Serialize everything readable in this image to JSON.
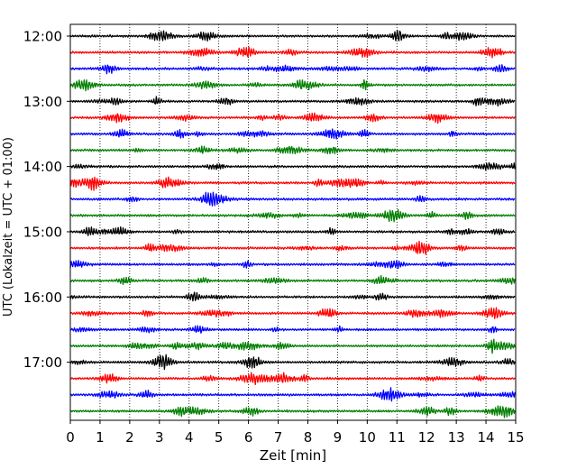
{
  "chart_data": {
    "type": "line",
    "title": "",
    "xlabel": "Zeit  [min]",
    "ylabel": "UTC (Lokalzeit = UTC + 01:00)",
    "xlim": [
      0,
      15
    ],
    "x_ticks": [
      0,
      1,
      2,
      3,
      4,
      5,
      6,
      7,
      8,
      9,
      10,
      11,
      12,
      13,
      14,
      15
    ],
    "x_tick_labels": [
      "0",
      "1",
      "2",
      "3",
      "4",
      "5",
      "6",
      "7",
      "8",
      "9",
      "10",
      "11",
      "12",
      "13",
      "14",
      "15"
    ],
    "grid": "vertical dotted",
    "legend": "none",
    "y_tick_labels": [
      "12:00",
      "13:00",
      "14:00",
      "15:00",
      "16:00",
      "17:00"
    ],
    "trace_colors": [
      "#000000",
      "#ff0000",
      "#0000ff",
      "#007f00"
    ],
    "traces": [
      {
        "start": "12:00",
        "color": "#000000"
      },
      {
        "start": "12:15",
        "color": "#ff0000"
      },
      {
        "start": "12:30",
        "color": "#0000ff"
      },
      {
        "start": "12:45",
        "color": "#007f00"
      },
      {
        "start": "13:00",
        "color": "#000000"
      },
      {
        "start": "13:15",
        "color": "#ff0000"
      },
      {
        "start": "13:30",
        "color": "#0000ff"
      },
      {
        "start": "13:45",
        "color": "#007f00"
      },
      {
        "start": "14:00",
        "color": "#000000"
      },
      {
        "start": "14:15",
        "color": "#ff0000"
      },
      {
        "start": "14:30",
        "color": "#0000ff"
      },
      {
        "start": "14:45",
        "color": "#007f00"
      },
      {
        "start": "15:00",
        "color": "#000000"
      },
      {
        "start": "15:15",
        "color": "#ff0000"
      },
      {
        "start": "15:30",
        "color": "#0000ff"
      },
      {
        "start": "15:45",
        "color": "#007f00"
      },
      {
        "start": "16:00",
        "color": "#000000"
      },
      {
        "start": "16:15",
        "color": "#ff0000"
      },
      {
        "start": "16:30",
        "color": "#0000ff"
      },
      {
        "start": "16:45",
        "color": "#007f00"
      },
      {
        "start": "17:00",
        "color": "#000000"
      },
      {
        "start": "17:15",
        "color": "#ff0000"
      },
      {
        "start": "17:30",
        "color": "#0000ff"
      },
      {
        "start": "17:45",
        "color": "#007f00"
      }
    ]
  }
}
